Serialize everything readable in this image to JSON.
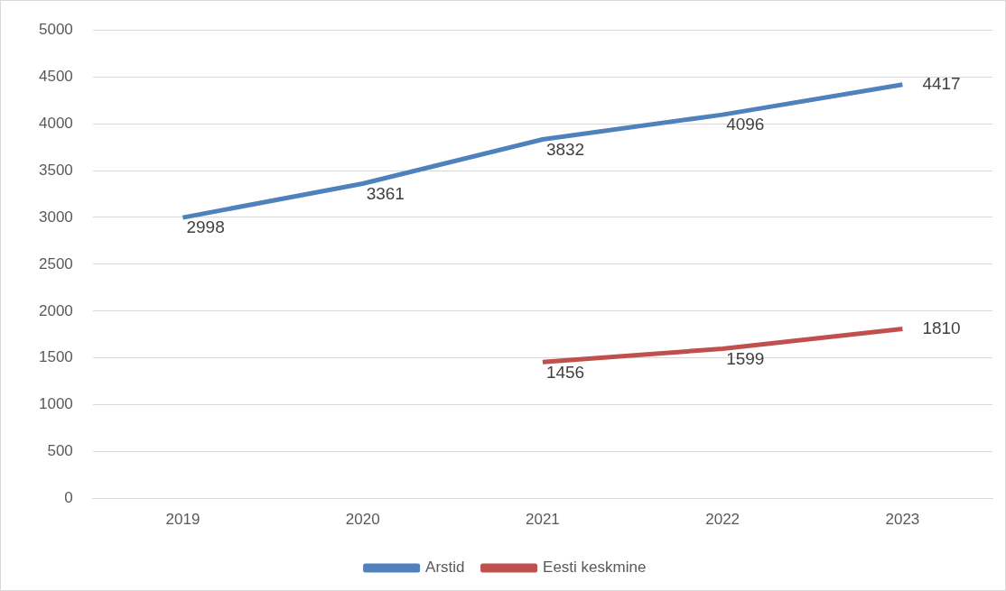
{
  "chart_data": {
    "type": "line",
    "categories": [
      "2019",
      "2020",
      "2021",
      "2022",
      "2023"
    ],
    "series": [
      {
        "name": "Arstid",
        "color": "#4f81bd",
        "values": [
          2998,
          3361,
          3832,
          4096,
          4417
        ]
      },
      {
        "name": "Eesti keskmine",
        "color": "#c0504d",
        "values": [
          null,
          null,
          1456,
          1599,
          1810
        ]
      }
    ],
    "ylim": [
      0,
      5000
    ],
    "yticks": [
      0,
      500,
      1000,
      1500,
      2000,
      2500,
      3000,
      3500,
      4000,
      4500,
      5000
    ],
    "grid": "y",
    "legend": "bottom",
    "data_labels": true,
    "marker": "none",
    "line_style": "solid"
  }
}
